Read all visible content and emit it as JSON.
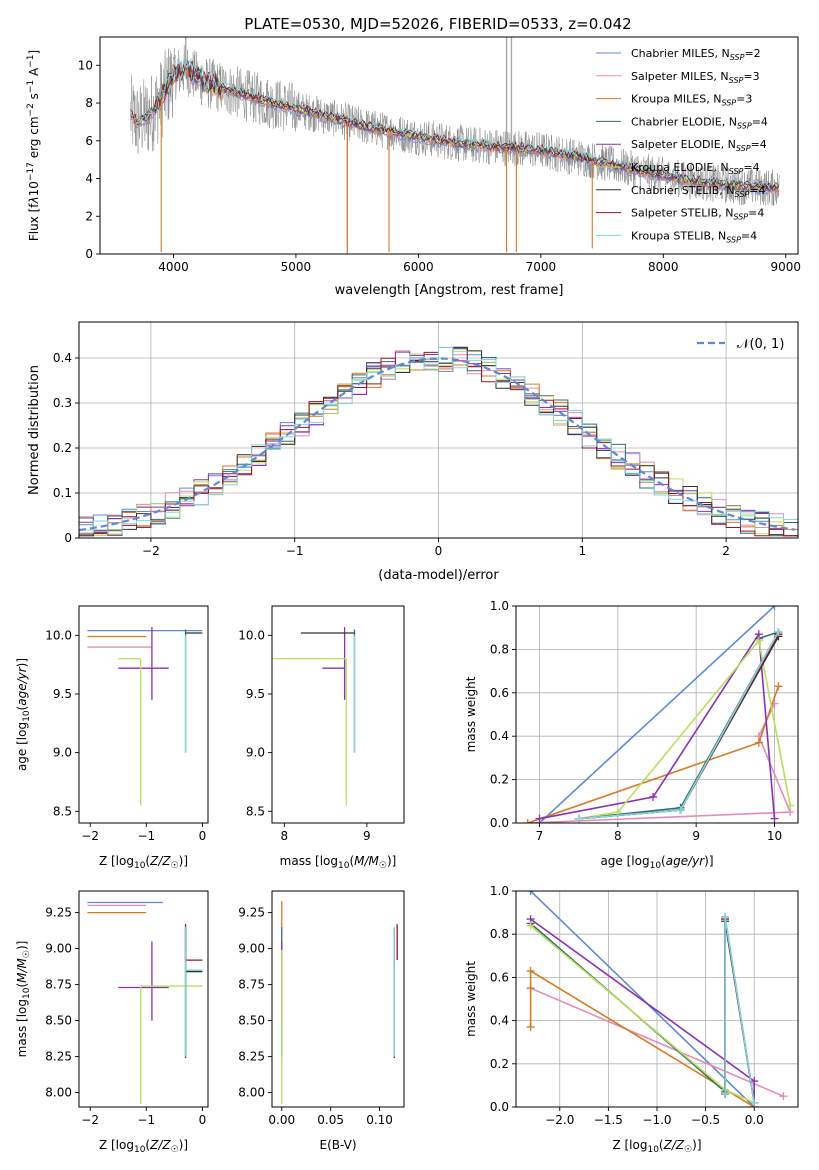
{
  "title": "PLATE=0530, MJD=52026, FIBERID=0533, z=0.042",
  "colors": {
    "Chabrier MILES": "#5b8bd6",
    "Salpeter MILES": "#e58bb8",
    "Kroupa MILES": "#d87a20",
    "Chabrier ELODIE": "#2f6f6f",
    "Salpeter ELODIE": "#8c2fb5",
    "Kroupa ELODIE": "#b8e05a",
    "Chabrier STELIB": "#303030",
    "Salpeter STELIB": "#a01020",
    "Kroupa STELIB": "#7fd6e0",
    "data": "#8a8a8a"
  },
  "chart_data": [
    {
      "id": "spectrum",
      "type": "line",
      "xlabel": "wavelength [Angstrom, rest frame]",
      "ylabel": "Flux [f_λ 10^-17 erg cm^-2 s^-1 A^-1]",
      "xlim": [
        3400,
        9100
      ],
      "ylim": [
        0,
        11.5
      ],
      "xticks": [
        4000,
        5000,
        6000,
        7000,
        8000,
        9000
      ],
      "yticks": [
        0,
        2,
        4,
        6,
        8,
        10
      ],
      "legend_position": "upper right",
      "legend": [
        {
          "label": "Chabrier MILES, N",
          "sub": "SSP",
          "suffix": "=2"
        },
        {
          "label": "Salpeter MILES, N",
          "sub": "SSP",
          "suffix": "=3"
        },
        {
          "label": "Kroupa MILES, N",
          "sub": "SSP",
          "suffix": "=3"
        },
        {
          "label": "Chabrier ELODIE, N",
          "sub": "SSP",
          "suffix": "=4"
        },
        {
          "label": "Salpeter ELODIE, N",
          "sub": "SSP",
          "suffix": "=4"
        },
        {
          "label": "Kroupa ELODIE, N",
          "sub": "SSP",
          "suffix": "=4"
        },
        {
          "label": "Chabrier STELIB, N",
          "sub": "SSP",
          "suffix": "=4"
        },
        {
          "label": "Salpeter STELIB, N",
          "sub": "SSP",
          "suffix": "=4"
        },
        {
          "label": "Kroupa STELIB, N",
          "sub": "SSP",
          "suffix": "=4"
        }
      ],
      "model_continuum": {
        "x": [
          3650,
          3700,
          3800,
          3900,
          4000,
          4100,
          4200,
          4300,
          4500,
          4800,
          5000,
          5300,
          5600,
          6000,
          6400,
          6800,
          7000,
          7400,
          7800,
          8200,
          8600,
          8900
        ],
        "y": [
          7.4,
          7.0,
          7.3,
          8.2,
          9.5,
          9.8,
          9.3,
          9.0,
          8.6,
          8.0,
          7.7,
          7.2,
          6.7,
          6.2,
          5.8,
          5.6,
          5.5,
          5.0,
          4.4,
          3.9,
          3.6,
          3.5
        ]
      },
      "spikes": [
        {
          "x": 3900,
          "y": 0.1
        },
        {
          "x": 5420,
          "y": 0.1
        },
        {
          "x": 5760,
          "y": 0.1
        },
        {
          "x": 6720,
          "y": 0.1
        },
        {
          "x": 6800,
          "y": 0.1
        },
        {
          "x": 7420,
          "y": 0.3
        }
      ]
    },
    {
      "id": "residuals",
      "type": "histogram",
      "xlabel": "(data-model)/error",
      "ylabel": "Normed distribution",
      "xlim": [
        -2.5,
        2.5
      ],
      "ylim": [
        0,
        0.48
      ],
      "xticks": [
        -2,
        -1,
        0,
        1,
        2
      ],
      "xticklabels": [
        "−2",
        "−1",
        "0",
        "1",
        "2"
      ],
      "yticks": [
        0.0,
        0.1,
        0.2,
        0.3,
        0.4
      ],
      "grid": true,
      "legend_position": "upper right",
      "legend_label": "𝒩(0, 1)",
      "bin_width": 0.1
    },
    {
      "id": "Z_vs_age",
      "type": "errorbar",
      "xlabel": "Z [log10(Z/Z☉)]",
      "ylabel": "age [log10(age/yr)]",
      "xlim": [
        -2.2,
        0.1
      ],
      "ylim": [
        8.4,
        10.25
      ],
      "xticks": [
        -2,
        -1,
        0
      ],
      "xticklabels": [
        "−2",
        "−1",
        "0"
      ],
      "yticks": [
        8.5,
        9.0,
        9.5,
        10.0
      ],
      "yticklabels": [
        "8.5",
        "9.0",
        "9.5",
        "10.0"
      ],
      "points": [
        {
          "model": "Chabrier MILES",
          "x": -1.0,
          "xerr": [
            1.05,
            1.0
          ],
          "y": 10.04,
          "yerr": [
            0.0,
            0.0
          ]
        },
        {
          "model": "Salpeter MILES",
          "x": -1.5,
          "xerr": [
            0.55,
            0.6
          ],
          "y": 9.9,
          "yerr": [
            0.0,
            0.0
          ]
        },
        {
          "model": "Kroupa MILES",
          "x": -1.5,
          "xerr": [
            0.55,
            0.5
          ],
          "y": 9.99,
          "yerr": [
            0.0,
            0.0
          ]
        },
        {
          "model": "Chabrier ELODIE",
          "x": -0.3,
          "xerr": [
            0.0,
            0.0
          ],
          "y": 9.6,
          "yerr": [
            0.6,
            0.45
          ]
        },
        {
          "model": "Salpeter ELODIE",
          "x": -0.9,
          "xerr": [
            0.6,
            0.3
          ],
          "y": 9.72,
          "yerr": [
            0.27,
            0.35
          ]
        },
        {
          "model": "Kroupa ELODIE",
          "x": -1.1,
          "xerr": [
            0.4,
            0.0
          ],
          "y": 9.8,
          "yerr": [
            1.25,
            0.0
          ]
        },
        {
          "model": "Chabrier STELIB",
          "x": -0.3,
          "xerr": [
            0.0,
            0.3
          ],
          "y": 10.02,
          "yerr": [
            0.0,
            0.0
          ]
        },
        {
          "model": "Salpeter STELIB",
          "x": -0.3,
          "xerr": [
            0.0,
            0.0
          ],
          "y": 9.8,
          "yerr": [
            0.0,
            0.0
          ]
        },
        {
          "model": "Kroupa STELIB",
          "x": -0.3,
          "xerr": [
            0.0,
            0.0
          ],
          "y": 9.6,
          "yerr": [
            0.6,
            0.4
          ]
        }
      ]
    },
    {
      "id": "mass_vs_age",
      "type": "errorbar",
      "xlabel": "mass [log10(M/M☉)]",
      "ylabel": "",
      "xlim": [
        7.85,
        9.45
      ],
      "ylim": [
        8.4,
        10.25
      ],
      "xticks": [
        8,
        9
      ],
      "xticklabels": [
        "8",
        "9"
      ],
      "yticks": [
        8.5,
        9.0,
        9.5,
        10.0
      ],
      "yticklabels": [
        "8.5",
        "9.0",
        "9.5",
        "10.0"
      ],
      "points": [
        {
          "model": "Chabrier MILES",
          "x": 9.3,
          "xerr": [
            0.0,
            0.0
          ],
          "y": 10.04,
          "yerr": [
            0.0,
            0.0
          ]
        },
        {
          "model": "Salpeter MILES",
          "x": 9.3,
          "xerr": [
            0.0,
            0.0
          ],
          "y": 9.9,
          "yerr": [
            0.0,
            0.0
          ]
        },
        {
          "model": "Kroupa MILES",
          "x": 9.25,
          "xerr": [
            0.0,
            0.0
          ],
          "y": 9.99,
          "yerr": [
            0.0,
            0.0
          ]
        },
        {
          "model": "Chabrier ELODIE",
          "x": 8.85,
          "xerr": [
            0.0,
            0.0
          ],
          "y": 9.6,
          "yerr": [
            0.6,
            0.45
          ]
        },
        {
          "model": "Salpeter ELODIE",
          "x": 8.73,
          "xerr": [
            0.27,
            0.0
          ],
          "y": 9.72,
          "yerr": [
            0.27,
            0.35
          ]
        },
        {
          "model": "Kroupa ELODIE",
          "x": 8.75,
          "xerr": [
            0.95,
            0.0
          ],
          "y": 9.8,
          "yerr": [
            1.25,
            0.0
          ]
        },
        {
          "model": "Chabrier STELIB",
          "x": 8.85,
          "xerr": [
            0.65,
            0.0
          ],
          "y": 10.02,
          "yerr": [
            0.0,
            0.0
          ]
        },
        {
          "model": "Salpeter STELIB",
          "x": 8.92,
          "xerr": [
            0.0,
            0.0
          ],
          "y": 9.8,
          "yerr": [
            0.0,
            0.0
          ]
        },
        {
          "model": "Kroupa STELIB",
          "x": 8.85,
          "xerr": [
            0.0,
            0.0
          ],
          "y": 9.6,
          "yerr": [
            0.6,
            0.4
          ]
        }
      ]
    },
    {
      "id": "age_vs_mass_weight",
      "type": "line",
      "xlabel": "age [log10(age/yr)]",
      "ylabel": "mass weight",
      "xlim": [
        6.7,
        10.3
      ],
      "ylim": [
        0,
        1.0
      ],
      "xticks": [
        7,
        8,
        9,
        10
      ],
      "xticklabels": [
        "7",
        "8",
        "9",
        "10"
      ],
      "yticks": [
        0.0,
        0.2,
        0.4,
        0.6,
        0.8,
        1.0
      ],
      "yticklabels": [
        "0.0",
        "0.2",
        "0.4",
        "0.6",
        "0.8",
        "1.0"
      ],
      "grid": true,
      "series": [
        {
          "model": "Chabrier MILES",
          "x": [
            7.0,
            10.0
          ],
          "y": [
            0.0,
            1.0
          ]
        },
        {
          "model": "Salpeter MILES",
          "x": [
            6.85,
            10.2,
            9.8,
            10.0
          ],
          "y": [
            0.0,
            0.05,
            0.4,
            0.55
          ]
        },
        {
          "model": "Kroupa MILES",
          "x": [
            6.85,
            9.8,
            10.05
          ],
          "y": [
            0.0,
            0.37,
            0.63
          ]
        },
        {
          "model": "Chabrier ELODIE",
          "x": [
            7.5,
            8.8,
            10.05,
            9.8
          ],
          "y": [
            0.02,
            0.07,
            0.88,
            0.85
          ]
        },
        {
          "model": "Salpeter ELODIE",
          "x": [
            7.0,
            8.45,
            9.8,
            10.0
          ],
          "y": [
            0.02,
            0.12,
            0.87,
            0.02
          ]
        },
        {
          "model": "Kroupa ELODIE",
          "x": [
            7.5,
            8.0,
            9.8,
            10.2
          ],
          "y": [
            0.02,
            0.05,
            0.84,
            0.08
          ]
        },
        {
          "model": "Chabrier STELIB",
          "x": [
            7.5,
            8.8,
            10.05
          ],
          "y": [
            0.02,
            0.06,
            0.86
          ]
        },
        {
          "model": "Salpeter STELIB",
          "x": [
            7.5,
            8.8,
            10.05
          ],
          "y": [
            0.02,
            0.06,
            0.87
          ]
        },
        {
          "model": "Kroupa STELIB",
          "x": [
            7.5,
            8.8,
            10.05
          ],
          "y": [
            0.02,
            0.06,
            0.88
          ]
        }
      ]
    },
    {
      "id": "Z_vs_mass",
      "type": "errorbar",
      "xlabel": "Z [log10(Z/Z☉)]",
      "ylabel": "mass [log10(M/M☉)]",
      "xlim": [
        -2.2,
        0.1
      ],
      "ylim": [
        7.9,
        9.4
      ],
      "xticks": [
        -2,
        -1,
        0
      ],
      "xticklabels": [
        "−2",
        "−1",
        "0"
      ],
      "yticks": [
        8.0,
        8.25,
        8.5,
        8.75,
        9.0,
        9.25
      ],
      "yticklabels": [
        "8.00",
        "8.25",
        "8.50",
        "8.75",
        "9.00",
        "9.25"
      ],
      "points": [
        {
          "model": "Chabrier MILES",
          "x": -1.5,
          "xerr": [
            0.55,
            0.8
          ],
          "y": 9.32,
          "yerr": [
            0.0,
            0.0
          ]
        },
        {
          "model": "Salpeter MILES",
          "x": -1.5,
          "xerr": [
            0.55,
            0.5
          ],
          "y": 9.3,
          "yerr": [
            0.0,
            0.0
          ]
        },
        {
          "model": "Kroupa MILES",
          "x": -1.5,
          "xerr": [
            0.55,
            0.5
          ],
          "y": 9.25,
          "yerr": [
            0.0,
            0.0
          ]
        },
        {
          "model": "Chabrier ELODIE",
          "x": -0.3,
          "xerr": [
            0.0,
            0.3
          ],
          "y": 8.85,
          "yerr": [
            0.6,
            0.3
          ]
        },
        {
          "model": "Salpeter ELODIE",
          "x": -0.9,
          "xerr": [
            0.6,
            0.3
          ],
          "y": 8.73,
          "yerr": [
            0.23,
            0.32
          ]
        },
        {
          "model": "Kroupa ELODIE",
          "x": -1.1,
          "xerr": [
            0.0,
            1.1
          ],
          "y": 8.74,
          "yerr": [
            0.82,
            0.0
          ]
        },
        {
          "model": "Chabrier STELIB",
          "x": -0.3,
          "xerr": [
            0.0,
            0.3
          ],
          "y": 8.84,
          "yerr": [
            0.6,
            0.3
          ]
        },
        {
          "model": "Salpeter STELIB",
          "x": -0.3,
          "xerr": [
            0.0,
            0.3
          ],
          "y": 8.92,
          "yerr": [
            0.0,
            0.25
          ]
        },
        {
          "model": "Kroupa STELIB",
          "x": -0.3,
          "xerr": [
            0.0,
            0.3
          ],
          "y": 8.85,
          "yerr": [
            0.6,
            0.3
          ]
        }
      ]
    },
    {
      "id": "ebv_vs_mass",
      "type": "errorbar",
      "xlabel": "E(B-V)",
      "ylabel": "",
      "xlim": [
        -0.01,
        0.125
      ],
      "ylim": [
        7.9,
        9.4
      ],
      "xticks": [
        0.0,
        0.05,
        0.1
      ],
      "xticklabels": [
        "0.00",
        "0.05",
        "0.10"
      ],
      "yticks": [
        8.0,
        8.25,
        8.5,
        8.75,
        9.0,
        9.25
      ],
      "yticklabels": [
        "8.00",
        "8.25",
        "8.50",
        "8.75",
        "9.00",
        "9.25"
      ],
      "points": [
        {
          "model": "Chabrier MILES",
          "x": 0.0,
          "xerr": [
            0.0,
            0.0
          ],
          "y": 9.32,
          "yerr": [
            0.0,
            0.0
          ]
        },
        {
          "model": "Salpeter MILES",
          "x": 0.0,
          "xerr": [
            0.0,
            0.0
          ],
          "y": 9.3,
          "yerr": [
            0.0,
            0.0
          ]
        },
        {
          "model": "Kroupa MILES",
          "x": 0.0,
          "xerr": [
            0.0,
            0.0
          ],
          "y": 9.25,
          "yerr": [
            0.1,
            0.08
          ]
        },
        {
          "model": "Chabrier ELODIE",
          "x": 0.0,
          "xerr": [
            0.0,
            0.0
          ],
          "y": 8.85,
          "yerr": [
            0.6,
            0.3
          ]
        },
        {
          "model": "Salpeter ELODIE",
          "x": 0.0,
          "xerr": [
            0.0,
            0.0
          ],
          "y": 8.73,
          "yerr": [
            0.23,
            0.32
          ]
        },
        {
          "model": "Kroupa ELODIE",
          "x": 0.0,
          "xerr": [
            0.0,
            0.0
          ],
          "y": 8.74,
          "yerr": [
            0.82,
            0.25
          ]
        },
        {
          "model": "Chabrier STELIB",
          "x": 0.115,
          "xerr": [
            0.0,
            0.0
          ],
          "y": 8.84,
          "yerr": [
            0.6,
            0.3
          ]
        },
        {
          "model": "Salpeter STELIB",
          "x": 0.118,
          "xerr": [
            0.0,
            0.0
          ],
          "y": 8.92,
          "yerr": [
            0.0,
            0.25
          ]
        },
        {
          "model": "Kroupa STELIB",
          "x": 0.115,
          "xerr": [
            0.0,
            0.0
          ],
          "y": 8.85,
          "yerr": [
            0.6,
            0.3
          ]
        }
      ]
    },
    {
      "id": "Z_vs_mass_weight",
      "type": "line",
      "xlabel": "Z [log10(Z/Z☉)]",
      "ylabel": "mass weight",
      "xlim": [
        -2.45,
        0.45
      ],
      "ylim": [
        0,
        1.0
      ],
      "xticks": [
        -2.0,
        -1.5,
        -1.0,
        -0.5,
        0.0
      ],
      "xticklabels": [
        "−2.0",
        "−1.5",
        "−1.0",
        "−0.5",
        "0.0"
      ],
      "yticks": [
        0.0,
        0.2,
        0.4,
        0.6,
        0.8,
        1.0
      ],
      "yticklabels": [
        "0.0",
        "0.2",
        "0.4",
        "0.6",
        "0.8",
        "1.0"
      ],
      "grid": true,
      "series": [
        {
          "model": "Chabrier MILES",
          "x": [
            -2.3,
            0.0
          ],
          "y": [
            1.0,
            0.0
          ]
        },
        {
          "model": "Salpeter MILES",
          "x": [
            -2.3,
            0.3
          ],
          "y": [
            0.55,
            0.05
          ]
        },
        {
          "model": "Kroupa MILES",
          "x": [
            -2.3,
            -2.3,
            -2.3,
            0.0
          ],
          "y": [
            0.37,
            0.55,
            0.63,
            0.0
          ]
        },
        {
          "model": "Chabrier ELODIE",
          "x": [
            -2.3,
            -0.3,
            -0.3,
            0.0
          ],
          "y": [
            0.85,
            0.07,
            0.88,
            0.02
          ]
        },
        {
          "model": "Salpeter ELODIE",
          "x": [
            -2.3,
            0.0,
            0.0
          ],
          "y": [
            0.87,
            0.12,
            0.02
          ]
        },
        {
          "model": "Kroupa ELODIE",
          "x": [
            -2.3,
            -0.3,
            0.0
          ],
          "y": [
            0.84,
            0.08,
            0.02
          ]
        },
        {
          "model": "Chabrier STELIB",
          "x": [
            -0.3,
            -0.3,
            0.0
          ],
          "y": [
            0.06,
            0.86,
            0.02
          ]
        },
        {
          "model": "Salpeter STELIB",
          "x": [
            -0.3,
            -0.3,
            0.0
          ],
          "y": [
            0.06,
            0.87,
            0.02
          ]
        },
        {
          "model": "Kroupa STELIB",
          "x": [
            -0.3,
            -0.3,
            0.0
          ],
          "y": [
            0.06,
            0.88,
            0.02
          ]
        }
      ]
    }
  ]
}
